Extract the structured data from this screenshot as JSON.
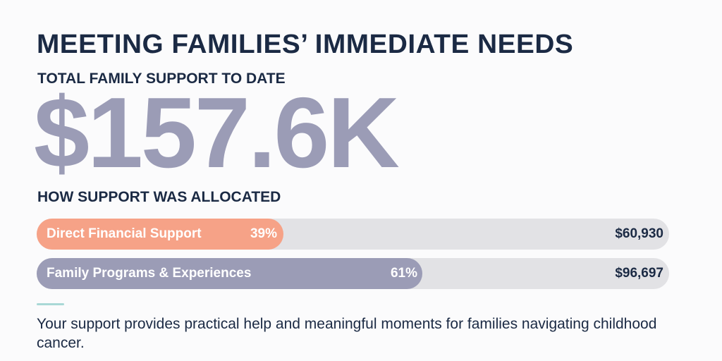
{
  "header": {
    "title": "MEETING FAMILIES’ IMMEDIATE NEEDS",
    "subtitle": "TOTAL FAMILY SUPPORT TO DATE",
    "total": "$157.6K"
  },
  "allocation": {
    "heading": "HOW SUPPORT WAS ALLOCATED"
  },
  "colors": {
    "accent_salmon": "#f6a287",
    "accent_purple": "#9b9cb6",
    "track": "#e2e2e5",
    "navy": "#1b2a44",
    "divider": "#a9d8d6"
  },
  "chart_data": {
    "type": "bar",
    "orientation": "horizontal",
    "categories": [
      "Direct Financial Support",
      "Family Programs & Experiences"
    ],
    "values": [
      60930,
      96697
    ],
    "percent_labels": [
      "39%",
      "61%"
    ],
    "percents": [
      39,
      61
    ],
    "amount_labels": [
      "$60,930",
      "$96,697"
    ],
    "colors": [
      "#f6a287",
      "#9b9cb6"
    ],
    "xlim": [
      0,
      157627
    ]
  },
  "footer": {
    "text": "Your support provides practical help and meaningful moments for families navigating childhood cancer."
  }
}
